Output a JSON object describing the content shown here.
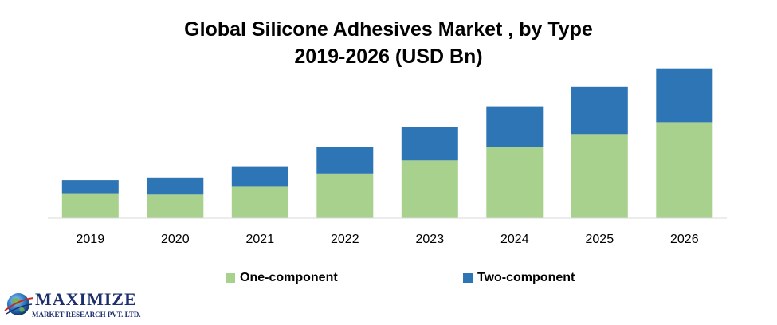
{
  "title_line1": "Global Silicone Adhesives Market , by Type",
  "title_line2": "2019-2026 (USD Bn)",
  "chart_data": {
    "type": "bar",
    "stacked": true,
    "categories": [
      "2019",
      "2020",
      "2021",
      "2022",
      "2023",
      "2024",
      "2025",
      "2026"
    ],
    "series": [
      {
        "name": "One-component",
        "color": "#a8d18d",
        "values": [
          1.9,
          1.8,
          2.4,
          3.4,
          4.4,
          5.4,
          6.4,
          7.3
        ]
      },
      {
        "name": "Two-component",
        "color": "#2e75b6",
        "values": [
          1.0,
          1.3,
          1.5,
          2.0,
          2.5,
          3.1,
          3.6,
          4.1
        ]
      }
    ],
    "ylim": [
      0,
      11.5
    ],
    "grid": false,
    "legend_position": "bottom"
  },
  "logo": {
    "word": "MAXIMIZE",
    "subtitle": "MARKET RESEARCH PVT. LTD."
  }
}
